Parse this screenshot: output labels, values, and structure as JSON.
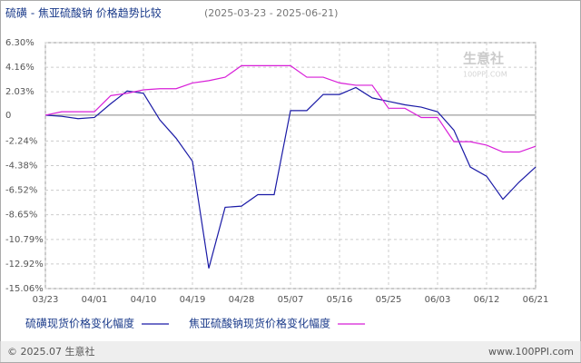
{
  "chart_data": {
    "type": "line",
    "title": "硫磺 - 焦亚硫酸钠 价格趋势比较",
    "subtitle": "(2025-03-23 - 2025-06-21)",
    "categories": [
      "03/23",
      null,
      null,
      "04/01",
      null,
      null,
      "04/10",
      null,
      null,
      "04/19",
      null,
      null,
      "04/28",
      null,
      null,
      "05/07",
      null,
      null,
      "05/16",
      null,
      null,
      "05/25",
      null,
      null,
      "06/03",
      null,
      null,
      "06/12",
      null,
      null,
      "06/21"
    ],
    "series": [
      {
        "name": "硫磺现货价格变化幅度",
        "color": "#1a1aa6",
        "values": [
          0,
          -0.1,
          -0.3,
          -0.2,
          1.0,
          2.1,
          1.9,
          -0.4,
          -2.0,
          -4.0,
          -13.3,
          -8.0,
          -7.9,
          -6.9,
          -6.9,
          0.4,
          0.4,
          1.8,
          1.8,
          2.4,
          1.5,
          1.2,
          0.9,
          0.7,
          0.3,
          -1.3,
          -4.5,
          -5.3,
          -7.3,
          -5.8,
          -4.5
        ]
      },
      {
        "name": "焦亚硫酸钠现货价格变化幅度",
        "color": "#d81ed8",
        "values": [
          0,
          0.3,
          0.3,
          0.3,
          1.7,
          1.9,
          2.2,
          2.3,
          2.3,
          2.8,
          3.0,
          3.3,
          4.3,
          4.3,
          4.3,
          4.3,
          3.3,
          3.3,
          2.8,
          2.6,
          2.6,
          0.6,
          0.6,
          -0.2,
          -0.2,
          -2.3,
          -2.3,
          -2.6,
          -3.2,
          -3.2,
          -2.7
        ]
      }
    ],
    "ylim": [
      -15.06,
      6.3
    ],
    "yticks": [
      {
        "value": 6.3,
        "label": "6.30%"
      },
      {
        "value": 4.16,
        "label": "4.16%"
      },
      {
        "value": 2.03,
        "label": "2.03%"
      },
      0,
      {
        "value": -2.24,
        "label": "-2.24%"
      },
      {
        "value": -4.38,
        "label": "-4.38%"
      },
      {
        "value": -6.52,
        "label": "-6.52%"
      },
      {
        "value": -8.65,
        "label": "-8.65%"
      },
      {
        "value": -10.79,
        "label": "-10.79%"
      },
      {
        "value": -12.92,
        "label": "-12.92%"
      },
      {
        "value": -15.06,
        "label": "-15.06%"
      }
    ],
    "grid": true,
    "watermark": {
      "name": "生意社",
      "site": "100PPI.COM"
    },
    "footer": {
      "copyright": "© 2025.07 生意社",
      "url": "www.100PPI.com"
    }
  }
}
